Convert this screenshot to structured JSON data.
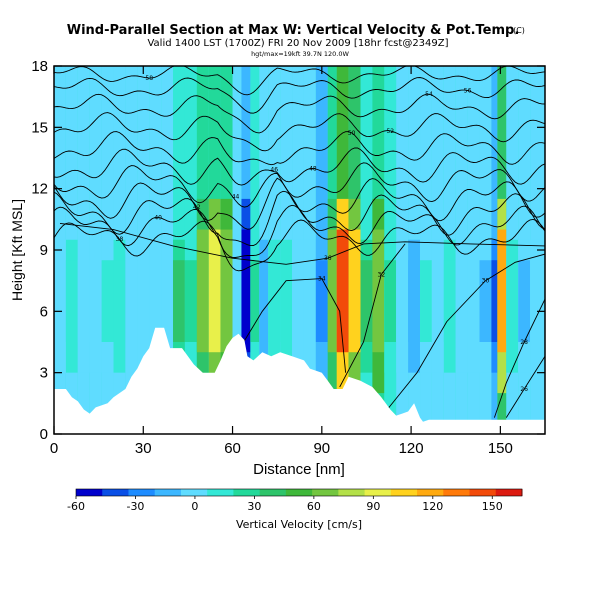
{
  "title": "Wind-Parallel Section at Max W: Vertical Velocity & Pot.Temp.",
  "title_mark": "(C)",
  "subtitle": "Valid 1400 LST (1700Z) FRI 20 Nov 2009 [18hr fcst@2349Z]",
  "subtitle2": "hgt/max=19kft 39.7N 120.0W",
  "chart_data": {
    "type": "heatmap",
    "xlabel": "Distance [nm]",
    "ylabel": "Height [Kft MSL]",
    "xlim": [
      0,
      165
    ],
    "ylim": [
      0,
      18
    ],
    "xticks": [
      0,
      30,
      60,
      90,
      120,
      150
    ],
    "yticks": [
      0,
      3,
      6,
      9,
      12,
      15,
      18
    ],
    "colorbar": {
      "label": "Vertical Velocity [cm/s]",
      "range": [
        -60,
        165
      ],
      "ticks": [
        -60,
        -30,
        0,
        30,
        60,
        90,
        120,
        150
      ],
      "colors": [
        "#0000cc",
        "#0a4fe6",
        "#1e8cff",
        "#3cb7ff",
        "#5fdcff",
        "#33e8d6",
        "#22d99a",
        "#2ec46a",
        "#3fb83a",
        "#73c640",
        "#b3e048",
        "#e8f04a",
        "#ffd21e",
        "#ffaa10",
        "#ff7a0a",
        "#f24a0a",
        "#dc1a10"
      ]
    },
    "cells": [
      {
        "x": [
          0,
          4
        ],
        "w": 0
      },
      {
        "x": [
          4,
          8
        ],
        "w": 10
      },
      {
        "x": [
          8,
          12
        ],
        "w": 6
      },
      {
        "x": [
          12,
          16
        ],
        "w": -3
      },
      {
        "x": [
          16,
          20
        ],
        "w": 8
      },
      {
        "x": [
          20,
          24
        ],
        "w": 14
      },
      {
        "x": [
          24,
          28
        ],
        "w": 4
      },
      {
        "x": [
          28,
          32
        ],
        "w": 0
      },
      {
        "x": [
          32,
          36
        ],
        "w": -4
      },
      {
        "x": [
          36,
          40
        ],
        "w": 2
      },
      {
        "x": [
          40,
          44
        ],
        "w": 35
      },
      {
        "x": [
          44,
          48
        ],
        "w": 20
      },
      {
        "x": [
          48,
          52
        ],
        "w": 60
      },
      {
        "x": [
          52,
          56
        ],
        "w": 88
      },
      {
        "x": [
          56,
          60
        ],
        "w": 70
      },
      {
        "x": [
          60,
          63
        ],
        "w": 5
      },
      {
        "x": [
          63,
          66
        ],
        "w": -55
      },
      {
        "x": [
          66,
          69
        ],
        "w": 25
      },
      {
        "x": [
          69,
          72
        ],
        "w": -15
      },
      {
        "x": [
          72,
          76
        ],
        "w": 15
      },
      {
        "x": [
          76,
          80
        ],
        "w": 10
      },
      {
        "x": [
          80,
          84
        ],
        "w": -5
      },
      {
        "x": [
          84,
          88
        ],
        "w": 5
      },
      {
        "x": [
          88,
          92
        ],
        "w": -25
      },
      {
        "x": [
          92,
          95
        ],
        "w": 60
      },
      {
        "x": [
          95,
          99
        ],
        "w": 150
      },
      {
        "x": [
          99,
          103
        ],
        "w": 100
      },
      {
        "x": [
          103,
          107
        ],
        "w": 45
      },
      {
        "x": [
          107,
          111
        ],
        "w": 70
      },
      {
        "x": [
          111,
          115
        ],
        "w": 20
      },
      {
        "x": [
          115,
          119
        ],
        "w": 5
      },
      {
        "x": [
          119,
          123
        ],
        "w": -20
      },
      {
        "x": [
          123,
          127
        ],
        "w": 8
      },
      {
        "x": [
          127,
          131
        ],
        "w": 4
      },
      {
        "x": [
          131,
          135
        ],
        "w": 10
      },
      {
        "x": [
          135,
          139
        ],
        "w": -5
      },
      {
        "x": [
          139,
          143
        ],
        "w": 5
      },
      {
        "x": [
          143,
          147
        ],
        "w": -8
      },
      {
        "x": [
          147,
          149
        ],
        "w": -40
      },
      {
        "x": [
          149,
          152
        ],
        "w": 120
      },
      {
        "x": [
          152,
          156
        ],
        "w": 10
      },
      {
        "x": [
          156,
          160
        ],
        "w": -10
      },
      {
        "x": [
          160,
          165
        ],
        "w": 5
      }
    ],
    "terrain": [
      [
        0,
        2.2
      ],
      [
        4,
        2.2
      ],
      [
        6,
        1.8
      ],
      [
        8,
        1.6
      ],
      [
        10,
        1.2
      ],
      [
        12,
        1.0
      ],
      [
        14,
        1.3
      ],
      [
        18,
        1.5
      ],
      [
        20,
        1.8
      ],
      [
        24,
        2.2
      ],
      [
        26,
        2.8
      ],
      [
        28,
        3.2
      ],
      [
        30,
        3.8
      ],
      [
        32,
        4.2
      ],
      [
        34,
        5.2
      ],
      [
        37,
        5.2
      ],
      [
        39,
        4.2
      ],
      [
        43,
        4.2
      ],
      [
        45,
        3.8
      ],
      [
        47,
        3.4
      ],
      [
        50,
        3.0
      ],
      [
        54,
        3.0
      ],
      [
        56,
        3.6
      ],
      [
        58,
        4.3
      ],
      [
        60,
        4.7
      ],
      [
        62,
        4.9
      ],
      [
        64,
        4.6
      ],
      [
        65,
        3.8
      ],
      [
        67,
        3.6
      ],
      [
        70,
        4.0
      ],
      [
        73,
        3.8
      ],
      [
        76,
        4.0
      ],
      [
        80,
        3.8
      ],
      [
        84,
        3.6
      ],
      [
        86,
        3.2
      ],
      [
        90,
        3.0
      ],
      [
        92,
        2.6
      ],
      [
        94,
        2.2
      ],
      [
        97,
        2.2
      ],
      [
        99,
        2.8
      ],
      [
        103,
        2.6
      ],
      [
        107,
        2.3
      ],
      [
        110,
        1.8
      ],
      [
        113,
        1.2
      ],
      [
        115,
        0.9
      ],
      [
        117,
        1.0
      ],
      [
        119,
        1.1
      ],
      [
        121,
        1.5
      ],
      [
        123,
        0.8
      ],
      [
        124,
        0.6
      ],
      [
        126,
        0.7
      ],
      [
        130,
        0.7
      ],
      [
        135,
        0.7
      ],
      [
        145,
        0.7
      ],
      [
        150,
        0.7
      ],
      [
        165,
        0.7
      ]
    ],
    "isentropes": [
      {
        "label": "38",
        "level": 9.6,
        "amp": 1.0
      },
      {
        "label": "40",
        "level": 10.2,
        "amp": 1.1
      },
      {
        "label": "42",
        "level": 10.8,
        "amp": 1.2
      },
      {
        "label": "44",
        "level": 11.5,
        "amp": 1.2
      },
      {
        "label": "46",
        "level": 12.3,
        "amp": 1.1
      },
      {
        "label": "48",
        "level": 13.1,
        "amp": 1.0
      },
      {
        "label": "50",
        "level": 14.0,
        "amp": 0.9
      },
      {
        "label": "52",
        "level": 15.0,
        "amp": 0.8
      },
      {
        "label": "54",
        "level": 16.0,
        "amp": 0.7
      },
      {
        "label": "56",
        "level": 16.9,
        "amp": 0.6
      },
      {
        "label": "58",
        "level": 17.6,
        "amp": 0.5
      }
    ],
    "low_isentropes": [
      {
        "label": "36",
        "points": [
          [
            2,
            10.3
          ],
          [
            20,
            10.0
          ],
          [
            40,
            9.2
          ],
          [
            60,
            8.6
          ],
          [
            78,
            8.3
          ],
          [
            92,
            8.6
          ],
          [
            104,
            9.3
          ],
          [
            118,
            9.4
          ],
          [
            140,
            9.3
          ],
          [
            165,
            9.2
          ]
        ]
      },
      {
        "label": "34",
        "points": [
          [
            60,
            3.6
          ],
          [
            70,
            6.0
          ],
          [
            78,
            7.5
          ],
          [
            90,
            7.6
          ],
          [
            96,
            6.0
          ],
          [
            98,
            3.0
          ]
        ]
      },
      {
        "label": "32",
        "points": [
          [
            96,
            2.3
          ],
          [
            104,
            4.5
          ],
          [
            110,
            7.8
          ],
          [
            118,
            9.3
          ]
        ]
      },
      {
        "label": "30",
        "points": [
          [
            112,
            1.2
          ],
          [
            122,
            3.0
          ],
          [
            132,
            5.5
          ],
          [
            145,
            7.5
          ],
          [
            155,
            8.4
          ],
          [
            165,
            8.8
          ]
        ]
      },
      {
        "label": "28",
        "points": [
          [
            148,
            0.8
          ],
          [
            152,
            2.5
          ],
          [
            158,
            4.5
          ],
          [
            165,
            6.6
          ]
        ]
      },
      {
        "label": "26",
        "points": [
          [
            152,
            0.8
          ],
          [
            158,
            2.2
          ],
          [
            165,
            3.8
          ]
        ]
      }
    ]
  }
}
